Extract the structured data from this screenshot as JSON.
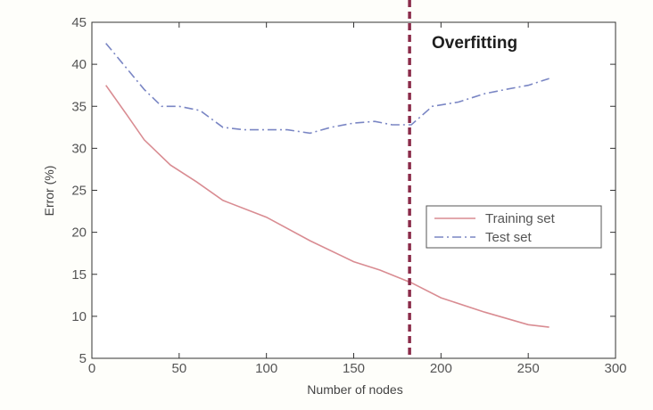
{
  "chart_data": {
    "type": "line",
    "title": "",
    "xlabel": "Number of nodes",
    "ylabel": "Error (%)",
    "xlim": [
      0,
      300
    ],
    "ylim": [
      5,
      45
    ],
    "xticks": [
      0,
      50,
      100,
      150,
      200,
      250,
      300
    ],
    "yticks": [
      5,
      10,
      15,
      20,
      25,
      30,
      35,
      40,
      45
    ],
    "grid": false,
    "legend_position": "right",
    "series": [
      {
        "name": "Training set",
        "color": "#d98c92",
        "style": "solid",
        "x": [
          8,
          20,
          30,
          45,
          60,
          75,
          100,
          125,
          150,
          165,
          183,
          200,
          225,
          250,
          262
        ],
        "y": [
          37.5,
          34.0,
          31.0,
          28.0,
          26.0,
          23.8,
          21.8,
          19.0,
          16.5,
          15.5,
          14.0,
          12.2,
          10.5,
          9.0,
          8.7
        ]
      },
      {
        "name": "Test set",
        "color": "#7a86c4",
        "style": "dashdot",
        "x": [
          8,
          20,
          30,
          40,
          50,
          62,
          75,
          87,
          100,
          112,
          125,
          137,
          150,
          162,
          172,
          183,
          195,
          210,
          225,
          237,
          250,
          262
        ],
        "y": [
          42.5,
          39.5,
          37.0,
          35.0,
          35.0,
          34.5,
          32.5,
          32.2,
          32.2,
          32.2,
          31.8,
          32.5,
          33.0,
          33.2,
          32.8,
          32.8,
          35.0,
          35.5,
          36.5,
          37.0,
          37.5,
          38.3
        ]
      }
    ],
    "reference_line": {
      "x": 182,
      "color": "#8b2c4a",
      "style": "dashed"
    },
    "annotations": [
      {
        "text": "Overfitting"
      }
    ]
  }
}
